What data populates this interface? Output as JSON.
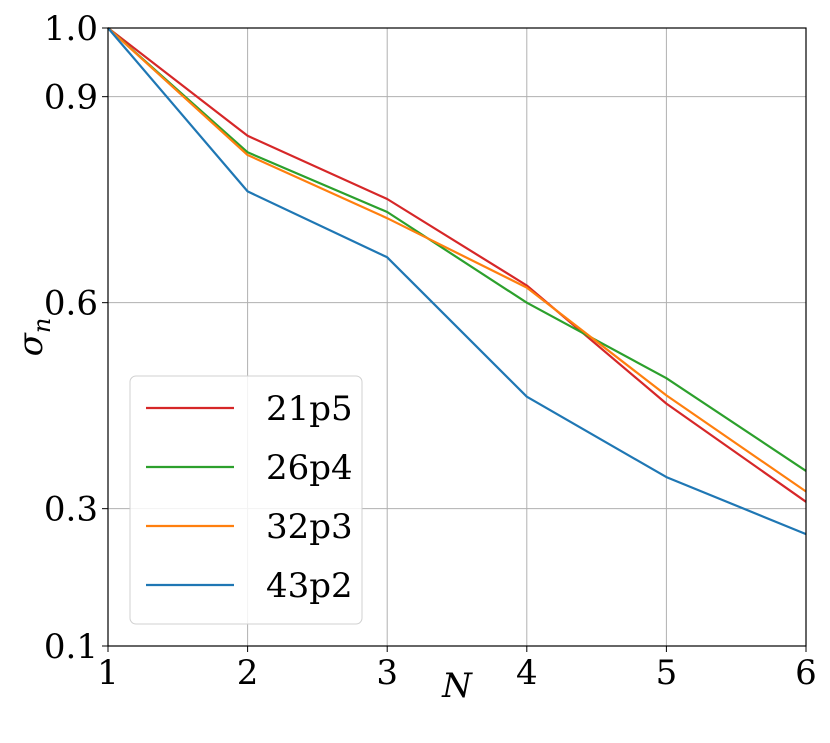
{
  "chart_data": {
    "type": "line",
    "xlabel": "N",
    "ylabel": "σ",
    "ylabel_subscript": "n",
    "xlim": [
      1,
      6
    ],
    "ylim": [
      0.1,
      1.0
    ],
    "xticks": [
      1,
      2,
      3,
      4,
      5,
      6
    ],
    "yticks": [
      0.1,
      0.3,
      0.6,
      0.9,
      1.0
    ],
    "ytick_labels": [
      "0.1",
      "0.3",
      "0.6",
      "0.9",
      "1.0"
    ],
    "grid": true,
    "legend_position": "lower-left",
    "x": [
      1,
      2,
      3,
      4,
      5,
      6
    ],
    "series": [
      {
        "name": "21p5",
        "color": "#d62728",
        "values": [
          1.0,
          0.843,
          0.751,
          0.625,
          0.453,
          0.31
        ]
      },
      {
        "name": "26p4",
        "color": "#2ca02c",
        "values": [
          1.0,
          0.819,
          0.732,
          0.6,
          0.49,
          0.355
        ]
      },
      {
        "name": "32p3",
        "color": "#ff7f0e",
        "values": [
          1.0,
          0.815,
          0.723,
          0.622,
          0.465,
          0.325
        ]
      },
      {
        "name": "43p2",
        "color": "#1f77b4",
        "values": [
          1.0,
          0.762,
          0.666,
          0.463,
          0.346,
          0.263
        ]
      }
    ]
  }
}
